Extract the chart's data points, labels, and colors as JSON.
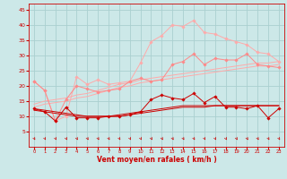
{
  "x": [
    0,
    1,
    2,
    3,
    4,
    5,
    6,
    7,
    8,
    9,
    10,
    11,
    12,
    13,
    14,
    15,
    16,
    17,
    18,
    19,
    20,
    21,
    22,
    23
  ],
  "bg_color": "#cce8e8",
  "grid_color": "#aad0d0",
  "xlabel": "Vent moyen/en rafales ( km/h )",
  "xlabel_color": "#cc0000",
  "tick_color": "#cc0000",
  "line_top_y": [
    21.5,
    18.5,
    8.5,
    10.0,
    23.0,
    20.5,
    22.0,
    20.5,
    21.0,
    21.5,
    27.5,
    34.5,
    36.5,
    40.0,
    39.5,
    41.5,
    37.5,
    37.0,
    35.5,
    34.5,
    33.5,
    31.0,
    30.5,
    28.0
  ],
  "line_top_color": "#ffaaaa",
  "line_top_marker": "D",
  "line_top_ms": 1.8,
  "line_mid1_y": [
    21.5,
    18.5,
    8.5,
    15.5,
    20.0,
    19.0,
    18.0,
    18.5,
    19.0,
    21.5,
    22.5,
    21.5,
    22.0,
    27.0,
    28.0,
    30.5,
    27.0,
    29.0,
    28.5,
    28.5,
    30.5,
    27.0,
    26.5,
    26.0
  ],
  "line_mid1_color": "#ff8888",
  "line_mid1_marker": "D",
  "line_mid1_ms": 1.8,
  "line_reg1a_y": [
    14.0,
    15.0,
    15.5,
    16.0,
    17.0,
    17.5,
    18.5,
    19.5,
    20.5,
    21.0,
    22.0,
    22.5,
    23.0,
    23.5,
    24.0,
    24.5,
    25.0,
    25.5,
    26.0,
    26.5,
    27.0,
    27.5,
    27.5,
    28.0
  ],
  "line_reg1a_color": "#ffaaaa",
  "line_reg1b_y": [
    13.0,
    14.0,
    14.5,
    15.0,
    16.0,
    16.5,
    17.5,
    18.5,
    19.5,
    20.0,
    21.0,
    21.5,
    22.0,
    22.5,
    23.0,
    23.5,
    24.0,
    24.5,
    25.0,
    25.5,
    26.0,
    26.5,
    26.5,
    27.0
  ],
  "line_reg1b_color": "#ffaaaa",
  "line_low1_y": [
    12.5,
    11.5,
    8.5,
    13.0,
    9.5,
    9.5,
    9.5,
    10.0,
    10.0,
    10.5,
    11.5,
    15.5,
    17.0,
    16.0,
    15.5,
    17.5,
    14.5,
    16.5,
    13.0,
    13.0,
    12.5,
    13.5,
    9.5,
    12.5
  ],
  "line_low1_color": "#cc0000",
  "line_low1_marker": "D",
  "line_low1_ms": 1.8,
  "line_reg2a_y": [
    12.0,
    11.5,
    11.0,
    10.5,
    10.0,
    10.0,
    10.0,
    10.0,
    10.5,
    11.0,
    11.5,
    12.0,
    12.5,
    13.0,
    13.5,
    13.5,
    13.5,
    13.5,
    13.5,
    13.5,
    13.5,
    13.5,
    13.5,
    13.5
  ],
  "line_reg2a_color": "#cc0000",
  "line_reg2b_y": [
    12.5,
    12.0,
    11.5,
    11.0,
    10.5,
    10.0,
    10.0,
    10.0,
    10.0,
    10.5,
    11.0,
    11.5,
    12.0,
    12.5,
    13.0,
    13.0,
    13.0,
    13.5,
    13.5,
    13.5,
    13.5,
    13.5,
    13.5,
    13.5
  ],
  "line_reg2b_color": "#cc0000",
  "ylim": [
    0,
    47
  ],
  "yticks": [
    5,
    10,
    15,
    20,
    25,
    30,
    35,
    40,
    45
  ],
  "xlim": [
    -0.5,
    23.5
  ]
}
